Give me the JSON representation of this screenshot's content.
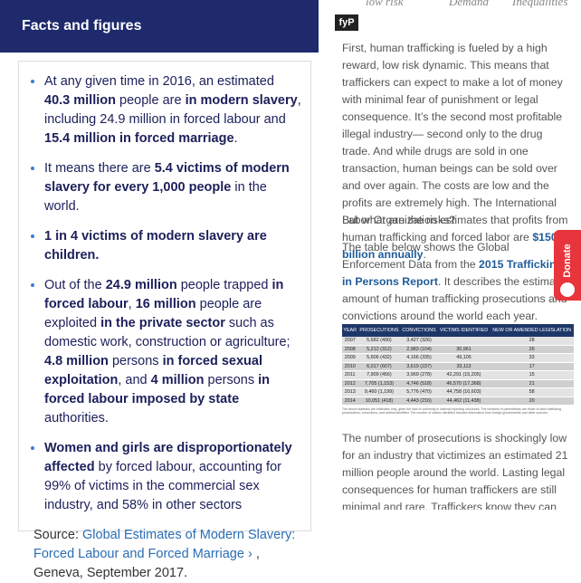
{
  "left": {
    "header": "Facts and figures",
    "bullets": [
      [
        {
          "t": "At any given time in 2016, an estimated "
        },
        {
          "t": "40.3 million",
          "b": true
        },
        {
          "t": " people are "
        },
        {
          "t": "in modern slavery",
          "b": true
        },
        {
          "t": ", including 24.9 million in forced labour and "
        },
        {
          "t": "15.4 million in forced marriage",
          "b": true
        },
        {
          "t": "."
        }
      ],
      [
        {
          "t": "It means there are "
        },
        {
          "t": "5.4 victims of modern slavery for every 1,000 people",
          "b": true
        },
        {
          "t": " in the world."
        }
      ],
      [
        {
          "t": "1 in 4 victims of modern slavery are children.",
          "b": true
        }
      ],
      [
        {
          "t": "Out of the "
        },
        {
          "t": "24.9 million",
          "b": true
        },
        {
          "t": " people trapped "
        },
        {
          "t": "in forced labour",
          "b": true
        },
        {
          "t": ", "
        },
        {
          "t": "16 million",
          "b": true
        },
        {
          "t": " people are exploited "
        },
        {
          "t": "in the private sector",
          "b": true
        },
        {
          "t": " such as domestic work, construction or agriculture; "
        },
        {
          "t": "4.8 million",
          "b": true
        },
        {
          "t": " persons "
        },
        {
          "t": "in forced sexual exploitation",
          "b": true
        },
        {
          "t": ", and "
        },
        {
          "t": "4 million",
          "b": true
        },
        {
          "t": " persons "
        },
        {
          "t": "in forced labour imposed by state",
          "b": true
        },
        {
          "t": " authorities."
        }
      ],
      [
        {
          "t": "Women and girls are disproportionately affected",
          "b": true
        },
        {
          "t": " by forced labour, accounting for 99% of victims in the commercial sex industry, and 58% in other sectors"
        }
      ]
    ],
    "source": [
      {
        "t": "Source: "
      },
      {
        "t": "Global Estimates of Modern Slavery: Forced Labour and Forced Marriage ›",
        "link": true
      },
      {
        "t": " , Geneva, September 2017."
      }
    ]
  },
  "right": {
    "top_tabs": [
      "low risk",
      "Demand",
      "Inequalities"
    ],
    "social": "fyP",
    "p1": [
      {
        "t": "First, human trafficking is fueled by a high reward, low risk dynamic. This means that traffickers can expect to make a lot of money with minimal fear of punishment or legal consequence. It’s the second most profitable illegal industry— second only to the drug trade. And while drugs are sold in one transaction, human beings can be sold over and over again. The costs are low and the profits are extremely high. The International Labor Organization estimates that profits from human trafficking and forced labor are "
      },
      {
        "t": "$150 billion annually",
        "b": true,
        "link": true
      },
      {
        "t": "."
      }
    ],
    "p2": [
      {
        "t": "But what are the risks?"
      }
    ],
    "p3": [
      {
        "t": "The table below shows the Global Enforcement Data from the "
      },
      {
        "t": "2015 Trafficking in Persons Report",
        "b": true,
        "link": true
      },
      {
        "t": ". It describes the estimated amount of human trafficking prosecutions and convictions around the world each year."
      }
    ],
    "table": {
      "header": [
        "YEAR",
        "PROSECUTIONS",
        "CONVICTIONS",
        "VICTIMS IDENTIFIED",
        "NEW OR AMENDED LEGISLATION"
      ],
      "rows": [
        [
          "2007",
          "5,682 (490)",
          "3,427 (326)",
          "",
          "28"
        ],
        [
          "2008",
          "5,212 (312)",
          "2,983 (104)",
          "30,961",
          "26"
        ],
        [
          "2009",
          "5,606 (432)",
          "4,166 (335)",
          "49,105",
          "33"
        ],
        [
          "2010",
          "6,017 (607)",
          "3,619 (237)",
          "33,113",
          "17"
        ],
        [
          "2011",
          "7,909 (456)",
          "3,969 (278)",
          "42,291 (15,205)",
          "15"
        ],
        [
          "2012",
          "7,705 (1,153)",
          "4,746 (518)",
          "46,570 (17,368)",
          "21"
        ],
        [
          "2013",
          "9,460 (1,199)",
          "5,776 (470)",
          "44,758 (10,603)",
          "58"
        ],
        [
          "2014",
          "10,051 (418)",
          "4,443 (216)",
          "44,462 (11,438)",
          "20"
        ]
      ],
      "note": "The above statistics are estimates only, given the lack of uniformity in national reporting structures. The numbers in parentheses are those of labor trafficking prosecutions, convictions, and victims identified. The number of victims identified includes information from foreign governments and other sources."
    },
    "p4": [
      {
        "t": "The number of prosecutions is shockingly low for an industry that victimizes an estimated 21 million people around the world. Lasting legal consequences for human traffickers are still minimal and rare. Traffickers know they can sell and exploit others and little will be done to stop them."
      }
    ],
    "donate": "Donate"
  }
}
